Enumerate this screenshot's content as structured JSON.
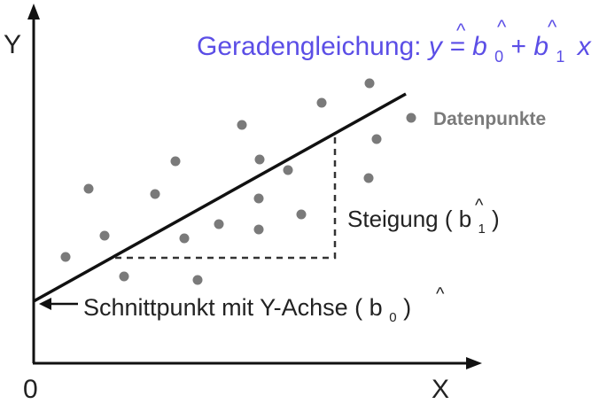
{
  "axes": {
    "y_label": "Y",
    "x_label": "X",
    "origin_label": "0"
  },
  "formula": {
    "prefix": "Geradengleichung: ",
    "y_symbol": "y",
    "equals": " = ",
    "b_symbol": "b",
    "b0_sub": "0",
    "plus": "+ ",
    "b1_sub": "1",
    "x_symbol": "x",
    "hat": "^",
    "color": "#5b4ee6"
  },
  "annotations": {
    "datapoints_label": "Datenpunkte",
    "slope_label_prefix": "Steigung (",
    "slope_b": "b",
    "slope_sub": "1",
    "slope_suffix": ")",
    "intercept_label_prefix": "Schnittpunkt mit Y-Achse (",
    "intercept_b": "b",
    "intercept_sub": "0",
    "intercept_suffix": ")",
    "hat": "^"
  },
  "colors": {
    "points": "#7a7a7a",
    "line": "#111111",
    "datapoints_label": "#7a7a7a"
  }
}
